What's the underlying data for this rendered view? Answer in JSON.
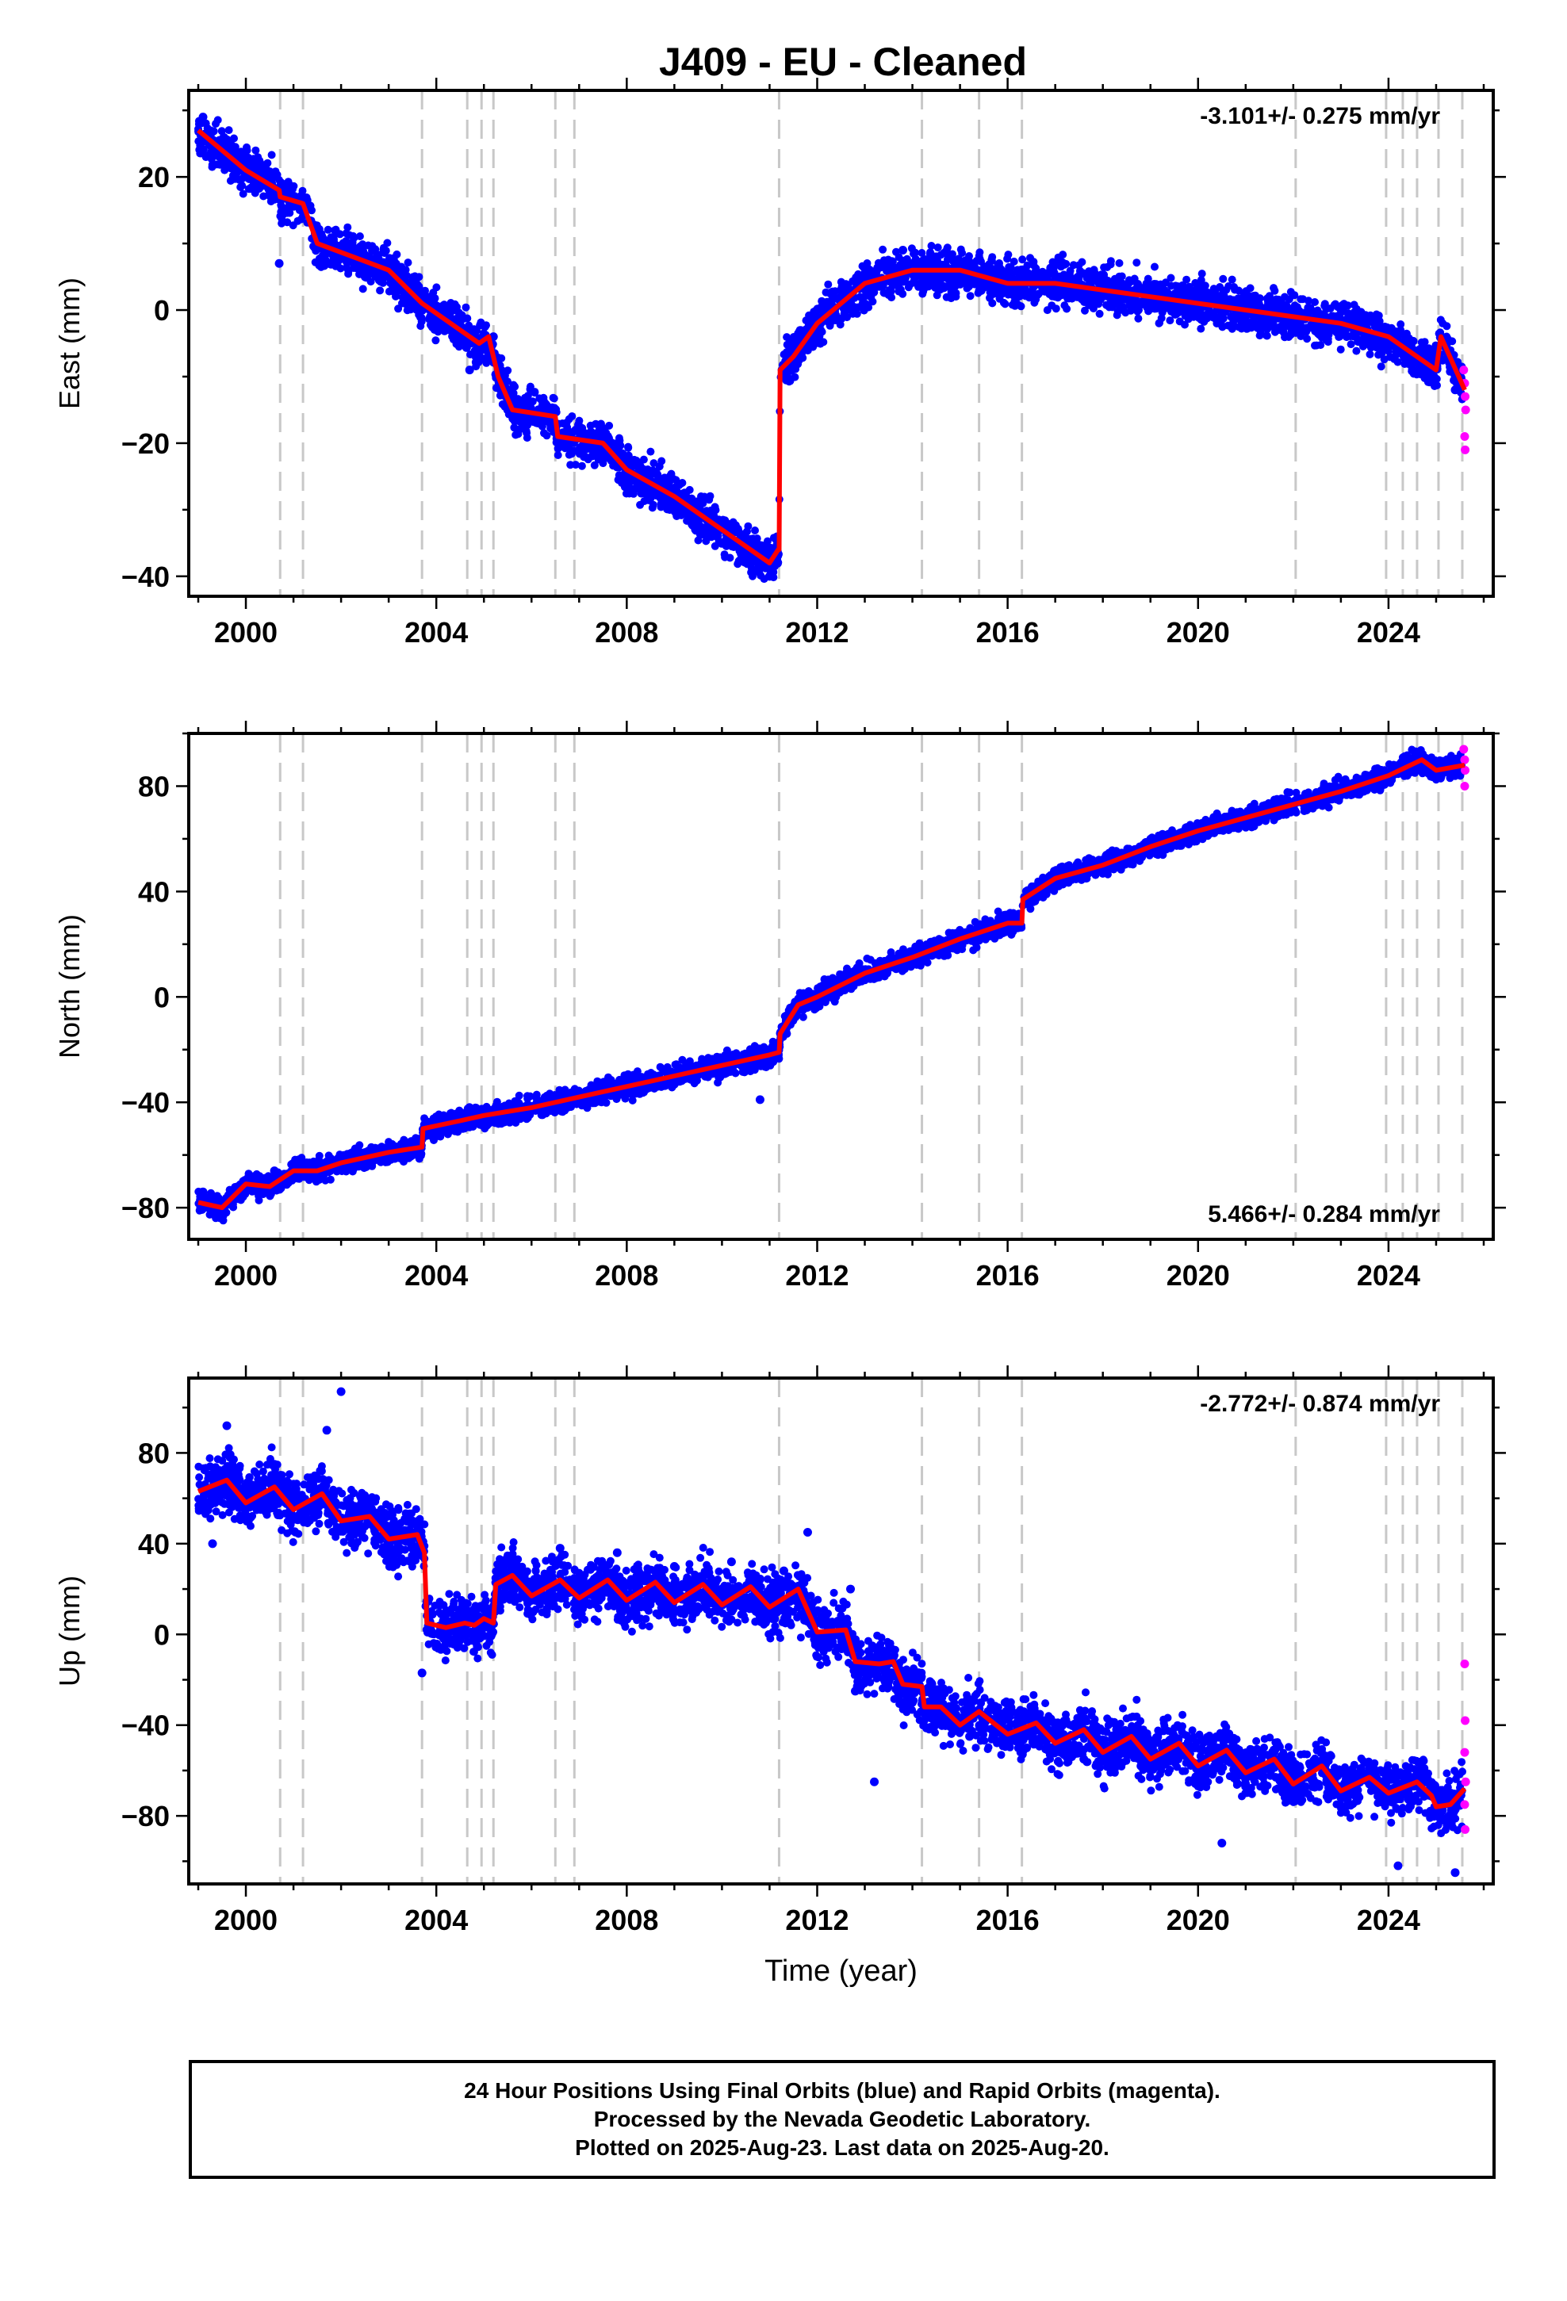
{
  "title": "J409  - EU - Cleaned",
  "colors": {
    "final": "#0000ff",
    "rapid": "#ff00ff",
    "model": "#ff0000",
    "event": "#c8c8c8"
  },
  "chart_data": [
    {
      "type": "scatter",
      "ylabel": "East (mm)",
      "xlim": [
        1998.8,
        2026.2
      ],
      "ylim": [
        -43,
        33
      ],
      "yticks": [
        -40,
        -20,
        0,
        20
      ],
      "yticklabels": [
        "−40",
        "−20",
        "0",
        "20"
      ],
      "xticks": [
        2000,
        2004,
        2008,
        2012,
        2016,
        2020,
        2024
      ],
      "rate": "-3.101+/- 0.275 mm/yr",
      "rate_position": "top-right",
      "model_line": [
        [
          1999.0,
          27
        ],
        [
          2000.0,
          21
        ],
        [
          2000.7,
          18
        ],
        [
          2000.72,
          17
        ],
        [
          2001.2,
          16
        ],
        [
          2001.5,
          10
        ],
        [
          2003.0,
          6
        ],
        [
          2003.7,
          1
        ],
        [
          2004.5,
          -3
        ],
        [
          2004.9,
          -5
        ],
        [
          2005.1,
          -4
        ],
        [
          2005.3,
          -10
        ],
        [
          2005.6,
          -15
        ],
        [
          2006.5,
          -16
        ],
        [
          2006.55,
          -19
        ],
        [
          2007.5,
          -20
        ],
        [
          2008.0,
          -24
        ],
        [
          2009.0,
          -28
        ],
        [
          2010.0,
          -33
        ],
        [
          2011.0,
          -38
        ],
        [
          2011.18,
          -36
        ],
        [
          2011.2,
          -36
        ],
        [
          2011.22,
          -9
        ],
        [
          2011.5,
          -7
        ],
        [
          2012.0,
          -2
        ],
        [
          2013.0,
          4
        ],
        [
          2014.0,
          6
        ],
        [
          2015.0,
          6
        ],
        [
          2016.0,
          4
        ],
        [
          2017.0,
          4
        ],
        [
          2018.0,
          3
        ],
        [
          2019.0,
          2
        ],
        [
          2020.0,
          1
        ],
        [
          2021.0,
          0
        ],
        [
          2022.0,
          -1
        ],
        [
          2023.0,
          -2
        ],
        [
          2024.0,
          -4
        ],
        [
          2024.8,
          -8
        ],
        [
          2025.0,
          -9
        ],
        [
          2025.1,
          -4
        ],
        [
          2025.6,
          -12
        ]
      ],
      "points": [
        [
          1999.1,
          29
        ],
        [
          1999.5,
          24
        ],
        [
          2000.0,
          22
        ],
        [
          2000.5,
          20
        ],
        [
          2000.7,
          7
        ],
        [
          2001.0,
          16
        ],
        [
          2001.6,
          11
        ],
        [
          2002.2,
          9
        ],
        [
          2002.9,
          7
        ],
        [
          2003.5,
          3
        ],
        [
          2004.1,
          -2
        ],
        [
          2004.7,
          -9
        ],
        [
          2005.2,
          -4
        ],
        [
          2005.5,
          -15
        ],
        [
          2006.1,
          -16
        ],
        [
          2006.8,
          -19
        ],
        [
          2007.4,
          -22
        ],
        [
          2008.0,
          -24
        ],
        [
          2008.7,
          -28
        ],
        [
          2009.3,
          -31
        ],
        [
          2009.9,
          -34
        ],
        [
          2010.5,
          -37
        ],
        [
          2011.0,
          -40
        ],
        [
          2011.4,
          -8
        ],
        [
          2011.9,
          -2
        ],
        [
          2012.5,
          3
        ],
        [
          2013.1,
          6
        ],
        [
          2013.8,
          9
        ],
        [
          2014.5,
          8
        ],
        [
          2015.1,
          7
        ],
        [
          2015.8,
          6
        ],
        [
          2016.5,
          5
        ],
        [
          2017.2,
          5
        ],
        [
          2017.9,
          3
        ],
        [
          2018.6,
          2
        ],
        [
          2019.3,
          2
        ],
        [
          2020.0,
          0
        ],
        [
          2020.7,
          -1
        ],
        [
          2021.4,
          -2
        ],
        [
          2022.1,
          -1
        ],
        [
          2022.8,
          -3
        ],
        [
          2023.5,
          -4
        ],
        [
          2024.2,
          -6
        ],
        [
          2024.9,
          -8
        ],
        [
          2025.4,
          -12
        ]
      ],
      "rapid_points": [
        [
          2025.58,
          -9
        ],
        [
          2025.6,
          -11
        ],
        [
          2025.61,
          -13
        ],
        [
          2025.62,
          -15
        ],
        [
          2025.6,
          -19
        ],
        [
          2025.61,
          -21
        ]
      ]
    },
    {
      "type": "scatter",
      "ylabel": "North (mm)",
      "xlim": [
        1998.8,
        2026.2
      ],
      "ylim": [
        -92,
        100
      ],
      "yticks": [
        -80,
        -40,
        0,
        40,
        80
      ],
      "yticklabels": [
        "−80",
        "−40",
        "0",
        "40",
        "80"
      ],
      "xticks": [
        2000,
        2004,
        2008,
        2012,
        2016,
        2020,
        2024
      ],
      "rate": "5.466+/- 0.284 mm/yr",
      "rate_position": "bottom-right",
      "model_line": [
        [
          1999.0,
          -78
        ],
        [
          1999.5,
          -80
        ],
        [
          2000.0,
          -71
        ],
        [
          2000.5,
          -72
        ],
        [
          2001.0,
          -66
        ],
        [
          2001.5,
          -66
        ],
        [
          2002.0,
          -63
        ],
        [
          2003.0,
          -59
        ],
        [
          2003.7,
          -57
        ],
        [
          2003.72,
          -50
        ],
        [
          2004.5,
          -47
        ],
        [
          2005.0,
          -45
        ],
        [
          2006.0,
          -42
        ],
        [
          2007.0,
          -38
        ],
        [
          2008.0,
          -34
        ],
        [
          2009.0,
          -30
        ],
        [
          2010.0,
          -26
        ],
        [
          2011.0,
          -22
        ],
        [
          2011.2,
          -21
        ],
        [
          2011.22,
          -14
        ],
        [
          2011.6,
          -3
        ],
        [
          2012.0,
          0
        ],
        [
          2013.0,
          9
        ],
        [
          2014.0,
          15
        ],
        [
          2015.0,
          22
        ],
        [
          2016.0,
          28
        ],
        [
          2016.3,
          28
        ],
        [
          2016.32,
          37
        ],
        [
          2017.0,
          45
        ],
        [
          2018.0,
          50
        ],
        [
          2019.0,
          57
        ],
        [
          2020.0,
          63
        ],
        [
          2021.0,
          68
        ],
        [
          2022.0,
          73
        ],
        [
          2023.0,
          78
        ],
        [
          2024.0,
          84
        ],
        [
          2024.7,
          90
        ],
        [
          2025.0,
          86
        ],
        [
          2025.6,
          88
        ]
      ],
      "points": [
        [
          1999.1,
          -74
        ],
        [
          1999.5,
          -80
        ],
        [
          2000.0,
          -72
        ],
        [
          2000.6,
          -66
        ],
        [
          2001.2,
          -64
        ],
        [
          2001.8,
          -62
        ],
        [
          2002.4,
          -60
        ],
        [
          2003.0,
          -58
        ],
        [
          2003.7,
          -54
        ],
        [
          2004.3,
          -48
        ],
        [
          2004.9,
          -44
        ],
        [
          2005.5,
          -42
        ],
        [
          2006.1,
          -41
        ],
        [
          2006.8,
          -38
        ],
        [
          2007.5,
          -35
        ],
        [
          2008.2,
          -33
        ],
        [
          2008.9,
          -30
        ],
        [
          2009.6,
          -27
        ],
        [
          2010.3,
          -25
        ],
        [
          2010.8,
          -39
        ],
        [
          2011.1,
          -22
        ],
        [
          2011.6,
          -2
        ],
        [
          2012.2,
          3
        ],
        [
          2012.8,
          9
        ],
        [
          2013.5,
          14
        ],
        [
          2014.2,
          18
        ],
        [
          2014.9,
          22
        ],
        [
          2015.6,
          26
        ],
        [
          2016.2,
          29
        ],
        [
          2016.8,
          42
        ],
        [
          2017.4,
          47
        ],
        [
          2018.0,
          52
        ],
        [
          2018.7,
          56
        ],
        [
          2019.3,
          59
        ],
        [
          2020.0,
          63
        ],
        [
          2020.7,
          67
        ],
        [
          2021.4,
          71
        ],
        [
          2022.1,
          74
        ],
        [
          2022.8,
          78
        ],
        [
          2023.5,
          82
        ],
        [
          2024.2,
          86
        ],
        [
          2024.8,
          90
        ],
        [
          2025.3,
          86
        ]
      ],
      "rapid_points": [
        [
          2025.58,
          94
        ],
        [
          2025.6,
          90
        ],
        [
          2025.61,
          86
        ],
        [
          2025.6,
          80
        ]
      ]
    },
    {
      "type": "scatter",
      "ylabel": "Up (mm)",
      "xlabel": "Time (year)",
      "xlim": [
        1998.8,
        2026.2
      ],
      "ylim": [
        -110,
        113
      ],
      "yticks": [
        -80,
        -40,
        0,
        40,
        80
      ],
      "yticklabels": [
        "−80",
        "−40",
        "0",
        "40",
        "80"
      ],
      "xticks": [
        2000,
        2004,
        2008,
        2012,
        2016,
        2020,
        2024
      ],
      "rate": "-2.772+/- 0.874 mm/yr",
      "rate_position": "top-right",
      "model_line": [
        [
          1999.0,
          63
        ],
        [
          1999.6,
          68
        ],
        [
          2000.0,
          58
        ],
        [
          2000.6,
          65
        ],
        [
          2001.0,
          55
        ],
        [
          2001.6,
          62
        ],
        [
          2002.0,
          50
        ],
        [
          2002.6,
          52
        ],
        [
          2003.0,
          42
        ],
        [
          2003.6,
          44
        ],
        [
          2003.75,
          36
        ],
        [
          2003.8,
          5
        ],
        [
          2004.2,
          3
        ],
        [
          2004.6,
          5
        ],
        [
          2004.8,
          4
        ],
        [
          2005.0,
          7
        ],
        [
          2005.2,
          5
        ],
        [
          2005.25,
          22
        ],
        [
          2005.6,
          26
        ],
        [
          2006.0,
          17
        ],
        [
          2006.6,
          24
        ],
        [
          2007.0,
          16
        ],
        [
          2007.6,
          24
        ],
        [
          2008.0,
          15
        ],
        [
          2008.6,
          23
        ],
        [
          2009.0,
          14
        ],
        [
          2009.6,
          22
        ],
        [
          2010.0,
          13
        ],
        [
          2010.6,
          21
        ],
        [
          2011.0,
          12
        ],
        [
          2011.6,
          20
        ],
        [
          2012.0,
          1
        ],
        [
          2012.6,
          2
        ],
        [
          2012.8,
          -12
        ],
        [
          2013.3,
          -13
        ],
        [
          2013.6,
          -12
        ],
        [
          2013.8,
          -22
        ],
        [
          2014.2,
          -23
        ],
        [
          2014.25,
          -32
        ],
        [
          2014.6,
          -32
        ],
        [
          2015.0,
          -40
        ],
        [
          2015.4,
          -34
        ],
        [
          2016.0,
          -44
        ],
        [
          2016.6,
          -39
        ],
        [
          2017.0,
          -48
        ],
        [
          2017.6,
          -42
        ],
        [
          2018.0,
          -52
        ],
        [
          2018.6,
          -45
        ],
        [
          2019.0,
          -55
        ],
        [
          2019.6,
          -48
        ],
        [
          2020.0,
          -58
        ],
        [
          2020.6,
          -51
        ],
        [
          2021.0,
          -61
        ],
        [
          2021.6,
          -55
        ],
        [
          2022.0,
          -66
        ],
        [
          2022.6,
          -58
        ],
        [
          2023.0,
          -69
        ],
        [
          2023.6,
          -63
        ],
        [
          2024.0,
          -70
        ],
        [
          2024.6,
          -65
        ],
        [
          2024.9,
          -71
        ],
        [
          2025.0,
          -76
        ],
        [
          2025.3,
          -75
        ],
        [
          2025.6,
          -68
        ]
      ],
      "points": [
        [
          1999.1,
          65
        ],
        [
          1999.3,
          40
        ],
        [
          1999.6,
          92
        ],
        [
          2000.1,
          60
        ],
        [
          2000.6,
          75
        ],
        [
          2001.2,
          55
        ],
        [
          2001.7,
          90
        ],
        [
          2002.0,
          107
        ],
        [
          2002.4,
          48
        ],
        [
          2003.0,
          38
        ],
        [
          2003.5,
          50
        ],
        [
          2003.7,
          -17
        ],
        [
          2004.2,
          0
        ],
        [
          2004.7,
          10
        ],
        [
          2005.1,
          3
        ],
        [
          2005.4,
          30
        ],
        [
          2006.0,
          15
        ],
        [
          2006.6,
          38
        ],
        [
          2007.2,
          20
        ],
        [
          2007.8,
          36
        ],
        [
          2008.4,
          12
        ],
        [
          2009.0,
          30
        ],
        [
          2009.6,
          16
        ],
        [
          2010.2,
          32
        ],
        [
          2010.8,
          8
        ],
        [
          2011.3,
          28
        ],
        [
          2011.8,
          45
        ],
        [
          2012.2,
          5
        ],
        [
          2012.7,
          20
        ],
        [
          2012.8,
          -25
        ],
        [
          2013.2,
          -65
        ],
        [
          2013.6,
          -10
        ],
        [
          2014.0,
          -30
        ],
        [
          2014.6,
          -32
        ],
        [
          2015.2,
          -45
        ],
        [
          2015.8,
          -36
        ],
        [
          2016.4,
          -50
        ],
        [
          2017.0,
          -40
        ],
        [
          2017.6,
          -55
        ],
        [
          2018.2,
          -48
        ],
        [
          2018.8,
          -58
        ],
        [
          2019.4,
          -50
        ],
        [
          2020.0,
          -62
        ],
        [
          2020.5,
          -92
        ],
        [
          2021.2,
          -58
        ],
        [
          2021.8,
          -68
        ],
        [
          2022.4,
          -62
        ],
        [
          2023.0,
          -72
        ],
        [
          2023.6,
          -66
        ],
        [
          2024.2,
          -102
        ],
        [
          2024.7,
          -66
        ],
        [
          2025.1,
          -78
        ],
        [
          2025.4,
          -105
        ]
      ],
      "rapid_points": [
        [
          2025.6,
          -13
        ],
        [
          2025.61,
          -38
        ],
        [
          2025.6,
          -52
        ],
        [
          2025.62,
          -65
        ],
        [
          2025.6,
          -75
        ],
        [
          2025.61,
          -86
        ]
      ]
    }
  ],
  "events": [
    2000.72,
    2001.2,
    2003.7,
    2004.65,
    2004.95,
    2005.2,
    2006.5,
    2006.9,
    2011.2,
    2014.2,
    2015.4,
    2016.3,
    2022.05,
    2023.95,
    2024.3,
    2024.6,
    2025.05,
    2025.55
  ],
  "caption": {
    "line1": "24 Hour Positions Using Final Orbits (blue) and Rapid Orbits (magenta).",
    "line2": "Processed by the Nevada Geodetic Laboratory.",
    "line3": "Plotted on 2025-Aug-23. Last data on 2025-Aug-20."
  }
}
